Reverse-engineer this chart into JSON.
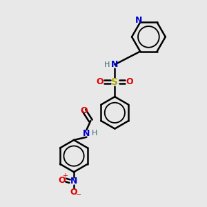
{
  "background_color": "#e8e8e8",
  "bond_color": "#000000",
  "bond_width": 1.8,
  "colors": {
    "C": "#000000",
    "N": "#0000cc",
    "O": "#dd0000",
    "S": "#aaaa00",
    "H": "#336666"
  },
  "figsize": [
    3.0,
    3.0
  ],
  "dpi": 100,
  "xlim": [
    0,
    10
  ],
  "ylim": [
    0,
    10
  ]
}
